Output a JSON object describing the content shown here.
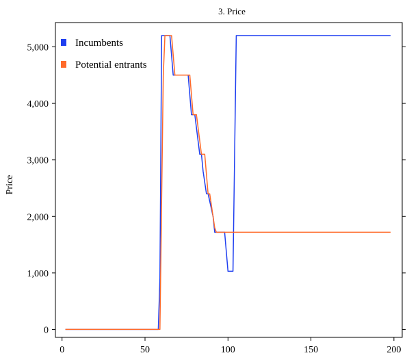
{
  "chart_data": {
    "type": "line",
    "title": "3. Price",
    "xlabel": "",
    "ylabel": "Price",
    "xlim": [
      -4,
      205
    ],
    "ylim": [
      -140,
      5430
    ],
    "xticks": [
      0,
      50,
      100,
      150,
      200
    ],
    "xtick_labels": [
      "0",
      "50",
      "100",
      "150",
      "200"
    ],
    "yticks": [
      0,
      1000,
      2000,
      3000,
      4000,
      5000
    ],
    "ytick_labels": [
      "0",
      "1,000",
      "2,000",
      "3,000",
      "4,000",
      "5,000"
    ],
    "grid": false,
    "legend_position": "top-left",
    "series": [
      {
        "name": "Incumbents",
        "color": "#1f3ff0",
        "x": [
          2,
          58,
          59,
          60,
          65,
          67,
          76,
          78,
          80,
          83,
          84,
          85,
          87,
          88,
          91,
          92,
          98,
          100,
          103,
          104,
          105,
          198
        ],
        "y": [
          0,
          0,
          900,
          5200,
          5200,
          4500,
          4500,
          3800,
          3800,
          3100,
          3100,
          2800,
          2400,
          2400,
          2000,
          1720,
          1720,
          1030,
          1030,
          3100,
          5200,
          5200
        ]
      },
      {
        "name": "Potential entrants",
        "color": "#ff6a2a",
        "x": [
          2,
          59,
          61,
          62,
          66,
          68,
          77,
          79,
          81,
          84,
          86,
          88,
          89,
          92,
          93,
          198
        ],
        "y": [
          0,
          0,
          4500,
          5200,
          5200,
          4500,
          4500,
          3800,
          3800,
          3100,
          3100,
          2400,
          2400,
          1800,
          1720,
          1720
        ]
      }
    ]
  }
}
